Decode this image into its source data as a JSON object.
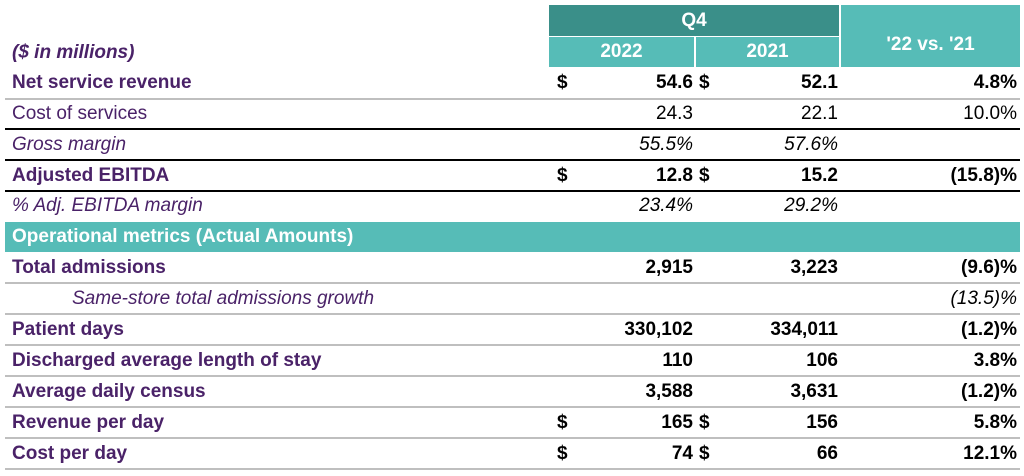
{
  "header": {
    "unit_label": "($ in millions)",
    "period": "Q4",
    "year_current": "2022",
    "year_prior": "2021",
    "comparison": "'22 vs. '21"
  },
  "rows": [
    {
      "label": "Net service revenue",
      "dollar1": "$",
      "v2022": "54.6",
      "dollar2": "$",
      "v2021": "52.1",
      "change": "4.8%"
    },
    {
      "label": "Cost of services",
      "v2022": "24.3",
      "v2021": "22.1",
      "change": "10.0%"
    },
    {
      "label": "Gross margin",
      "v2022": "55.5%",
      "v2021": "57.6%",
      "change": ""
    },
    {
      "label": "Adjusted EBITDA",
      "dollar1": "$",
      "v2022": "12.8",
      "dollar2": "$",
      "v2021": "15.2",
      "change": "(15.8)%"
    },
    {
      "label": "%  Adj. EBITDA margin",
      "v2022": "23.4%",
      "v2021": "29.2%",
      "change": ""
    },
    {
      "label": "Operational metrics (Actual Amounts)"
    },
    {
      "label": "Total admissions",
      "v2022": "2,915",
      "v2021": "3,223",
      "change": "(9.6)%"
    },
    {
      "label": "Same-store total admissions growth",
      "change": "(13.5)%"
    },
    {
      "label": "Patient days",
      "v2022": "330,102",
      "v2021": "334,011",
      "change": "(1.2)%"
    },
    {
      "label": "Discharged average length of stay",
      "v2022": "110",
      "v2021": "106",
      "change": "3.8%"
    },
    {
      "label": "Average daily census",
      "v2022": "3,588",
      "v2021": "3,631",
      "change": "(1.2)%"
    },
    {
      "label": "Revenue per day",
      "dollar1": "$",
      "v2022": "165",
      "dollar2": "$",
      "v2021": "156",
      "change": "5.8%"
    },
    {
      "label": "Cost per day",
      "dollar1": "$",
      "v2022": "74",
      "dollar2": "$",
      "v2021": "66",
      "change": "12.1%"
    }
  ]
}
